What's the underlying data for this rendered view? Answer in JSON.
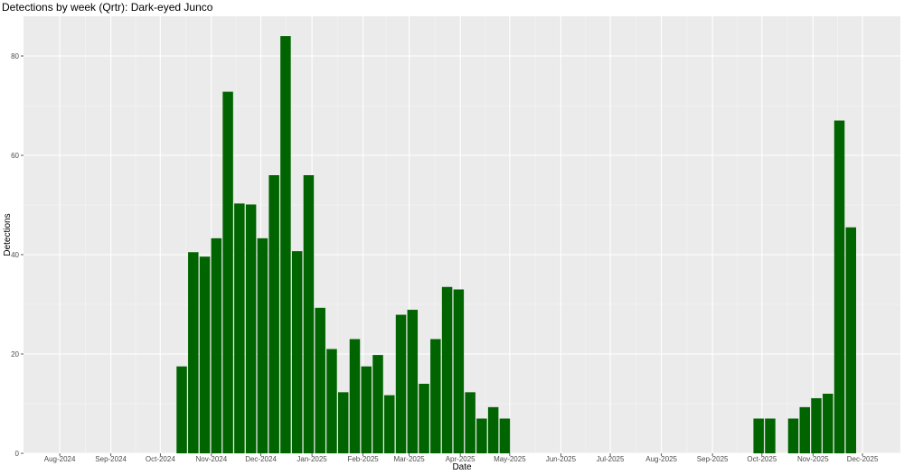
{
  "chart_data": {
    "type": "bar",
    "title": "Detections by week (Qrtr): Dark-eyed Junco",
    "xlabel": "Date",
    "ylabel": "Detections",
    "ylim": [
      0,
      88
    ],
    "yticks": [
      0,
      20,
      40,
      60,
      80
    ],
    "xlim": [
      "2024-07-10",
      "2025-12-24"
    ],
    "xticks": [
      {
        "date": "2024-08-01",
        "label": "Aug-2024"
      },
      {
        "date": "2024-09-01",
        "label": "Sep-2024"
      },
      {
        "date": "2024-10-01",
        "label": "Oct-2024"
      },
      {
        "date": "2024-11-01",
        "label": "Nov-2024"
      },
      {
        "date": "2024-12-01",
        "label": "Dec-2024"
      },
      {
        "date": "2025-01-01",
        "label": "Jan-2025"
      },
      {
        "date": "2025-02-01",
        "label": "Feb-2025"
      },
      {
        "date": "2025-03-01",
        "label": "Mar-2025"
      },
      {
        "date": "2025-04-01",
        "label": "Apr-2025"
      },
      {
        "date": "2025-05-01",
        "label": "May-2025"
      },
      {
        "date": "2025-06-01",
        "label": "Jun-2025"
      },
      {
        "date": "2025-07-01",
        "label": "Jul-2025"
      },
      {
        "date": "2025-08-01",
        "label": "Aug-2025"
      },
      {
        "date": "2025-09-01",
        "label": "Sep-2025"
      },
      {
        "date": "2025-10-01",
        "label": "Oct-2025"
      },
      {
        "date": "2025-11-01",
        "label": "Nov-2025"
      },
      {
        "date": "2025-12-01",
        "label": "Dec-2025"
      }
    ],
    "bar_color": "#006400",
    "panel_color": "#ebebeb",
    "grid": true,
    "x": [
      "2024-10-14",
      "2024-10-21",
      "2024-10-28",
      "2024-11-04",
      "2024-11-11",
      "2024-11-18",
      "2024-11-25",
      "2024-12-02",
      "2024-12-09",
      "2024-12-16",
      "2024-12-23",
      "2024-12-30",
      "2025-01-06",
      "2025-01-13",
      "2025-01-20",
      "2025-01-27",
      "2025-02-03",
      "2025-02-10",
      "2025-02-17",
      "2025-02-24",
      "2025-03-03",
      "2025-03-10",
      "2025-03-17",
      "2025-03-24",
      "2025-03-31",
      "2025-04-07",
      "2025-04-14",
      "2025-04-21",
      "2025-04-28",
      "2025-09-29",
      "2025-10-06",
      "2025-10-20",
      "2025-10-27",
      "2025-11-03",
      "2025-11-10",
      "2025-11-17",
      "2025-11-24"
    ],
    "values": [
      17.5,
      40.5,
      39.6,
      43.3,
      72.8,
      50.3,
      50.1,
      43.3,
      56,
      84,
      40.7,
      56,
      29.3,
      21,
      12.3,
      23,
      17.5,
      19.8,
      11.7,
      27.9,
      28.9,
      14,
      23,
      33.5,
      33,
      12.3,
      7,
      9.3,
      7,
      7,
      7,
      7,
      9.3,
      11.1,
      12,
      67,
      45.5
    ]
  }
}
